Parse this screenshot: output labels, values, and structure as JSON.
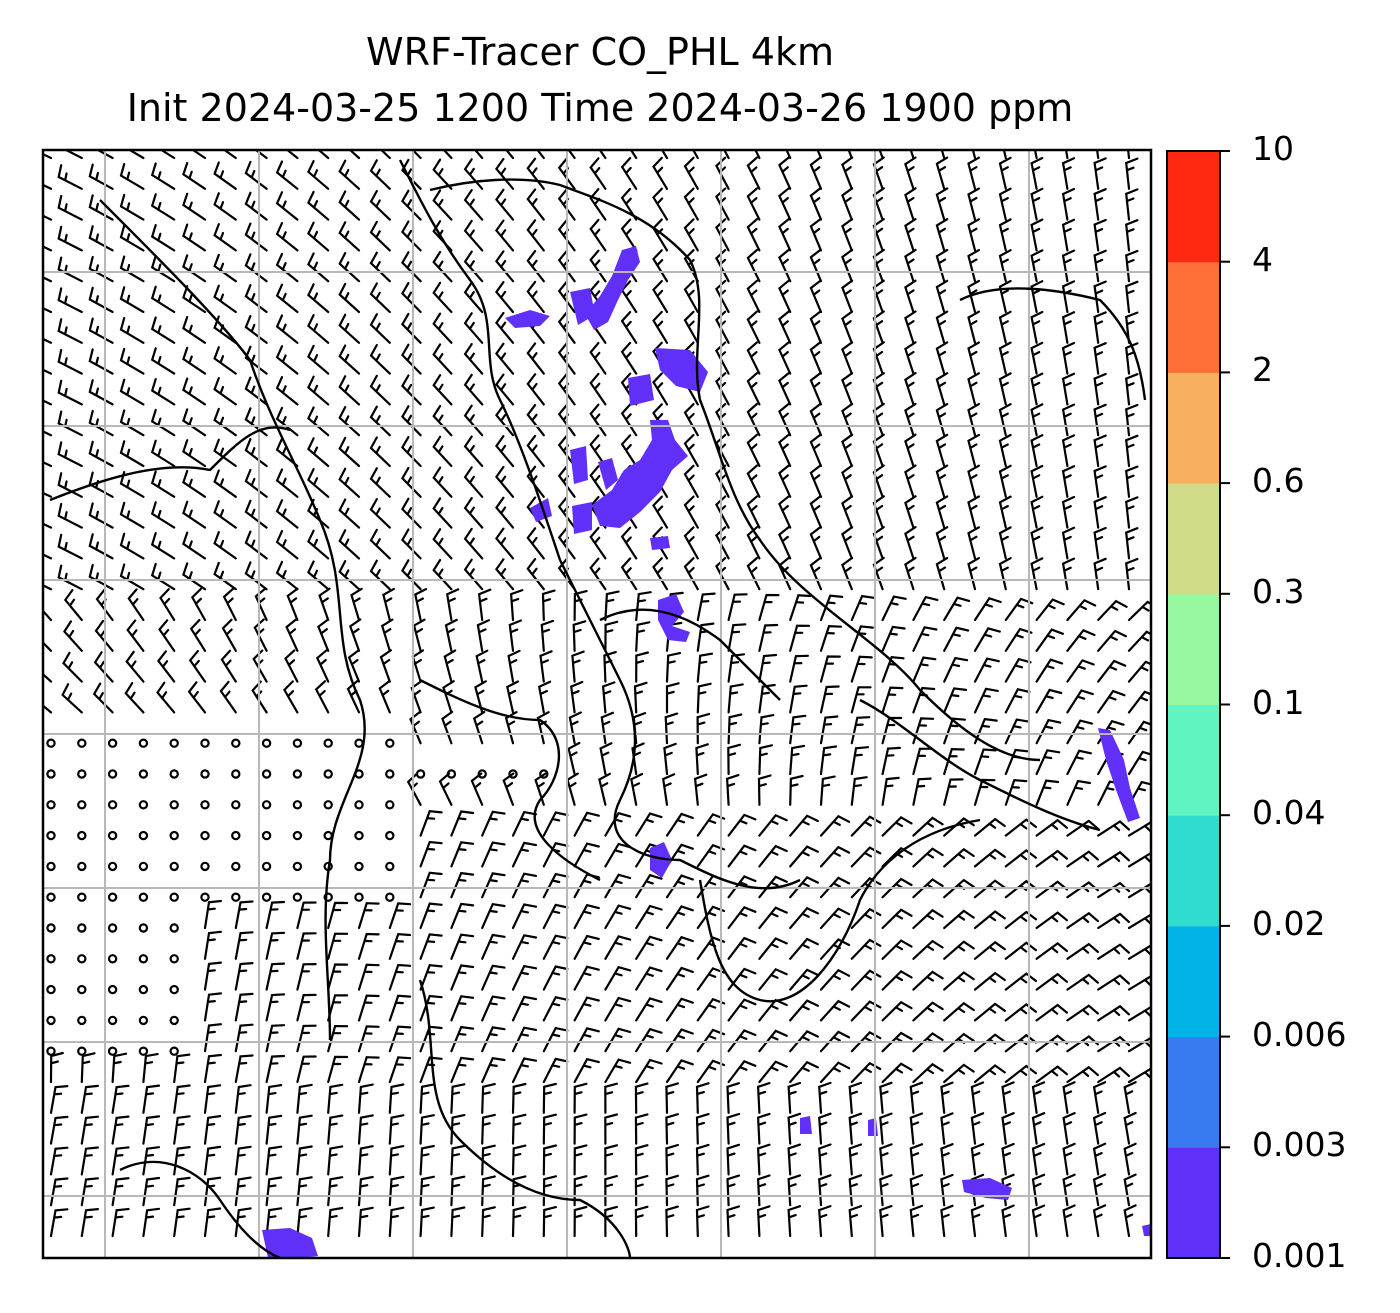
{
  "title": {
    "line1": "WRF-Tracer CO_PHL 4km",
    "line2": "Init 2024-03-25 1200 Time 2024-03-26 1900 ppm"
  },
  "colorbar": {
    "levels": [
      "0.001",
      "0.003",
      "0.006",
      "0.02",
      "0.04",
      "0.1",
      "0.3",
      "0.6",
      "2",
      "4",
      "10"
    ],
    "colors": [
      "#6030f8",
      "#3a7af0",
      "#00b4e8",
      "#30dcd0",
      "#60f4c0",
      "#98f8a0",
      "#d0dc88",
      "#f8b060",
      "#ff7038",
      "#ff2810"
    ]
  },
  "map": {
    "field_color": "#6030f8",
    "grid_color": "#b8b8b8",
    "barb_color": "#000000"
  }
}
